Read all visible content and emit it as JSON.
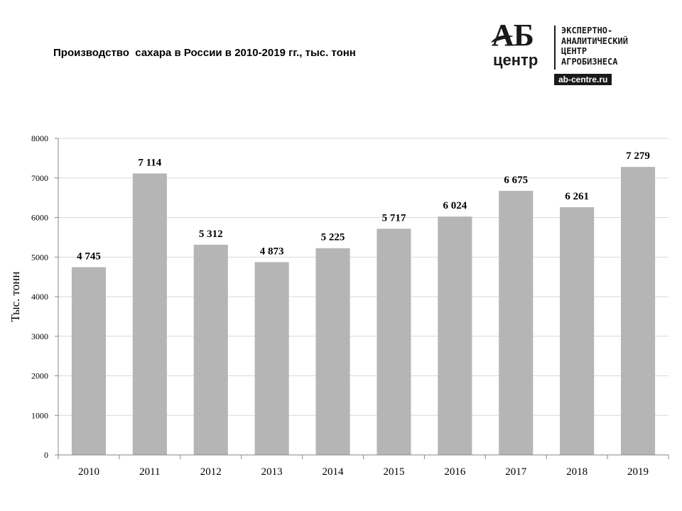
{
  "title": "Производство  сахара в России в 2010-2019 гг., тыс. тонн",
  "logo": {
    "mark_top": "АБ",
    "mark_bottom": "центр",
    "lines": [
      "ЭКСПЕРТНО-",
      "АНАЛИТИЧЕСКИЙ",
      "ЦЕНТР",
      "АГРОБИЗНЕСА"
    ],
    "url": "ab-centre.ru"
  },
  "colors": {
    "bar": "#b5b5b5",
    "grid": "#d9d9d9",
    "axis": "#888888"
  },
  "chart_data": {
    "type": "bar",
    "title": "Производство  сахара в России в 2010-2019 гг., тыс. тонн",
    "xlabel": "",
    "ylabel": "Тыс. тонн",
    "categories": [
      "2010",
      "2011",
      "2012",
      "2013",
      "2014",
      "2015",
      "2016",
      "2017",
      "2018",
      "2019"
    ],
    "values": [
      4745,
      7114,
      5312,
      4873,
      5225,
      5717,
      6024,
      6675,
      6261,
      7279
    ],
    "value_labels": [
      "4 745",
      "7 114",
      "5 312",
      "4 873",
      "5 225",
      "5 717",
      "6 024",
      "6 675",
      "6 261",
      "7 279"
    ],
    "ylim": [
      0,
      8000
    ],
    "yticks": [
      "0",
      "1000",
      "2000",
      "3000",
      "4000",
      "5000",
      "6000",
      "7000",
      "8000"
    ],
    "grid": true,
    "legend": "none"
  }
}
